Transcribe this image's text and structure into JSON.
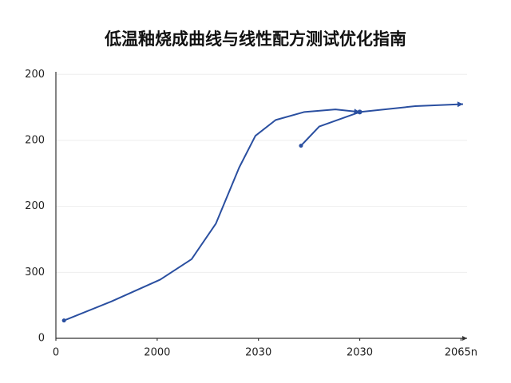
{
  "chart_data": {
    "type": "line",
    "title": "低温釉烧成曲线与线性配方测试优化指南",
    "xlim": [
      0,
      4.06
    ],
    "ylim": [
      0,
      404
    ],
    "xticks": [
      0,
      {
        "value": 1,
        "label": "2000"
      },
      {
        "value": 2,
        "label": "2030"
      },
      {
        "value": 3,
        "label": "2030"
      },
      {
        "value": 4,
        "label": "2065n"
      }
    ],
    "yticks": [
      {
        "value": 400,
        "label": "200"
      },
      {
        "value": 300,
        "label": "200"
      },
      200,
      {
        "value": 100,
        "label": "300"
      },
      0
    ],
    "grid": true,
    "series": [
      {
        "color": "#2a4fa0",
        "x": [
          0.08,
          0.55,
          1.03,
          1.34,
          1.58,
          1.81,
          1.97,
          2.17,
          2.45,
          2.76,
          3.0
        ],
        "values": [
          27,
          56,
          89,
          120,
          174,
          259,
          307,
          331,
          343,
          347,
          343
        ]
      },
      {
        "color": "#2a4fa0",
        "x": [
          2.42,
          2.6,
          3.0,
          3.55,
          4.02
        ],
        "values": [
          292,
          321,
          343,
          352,
          355
        ]
      }
    ]
  }
}
